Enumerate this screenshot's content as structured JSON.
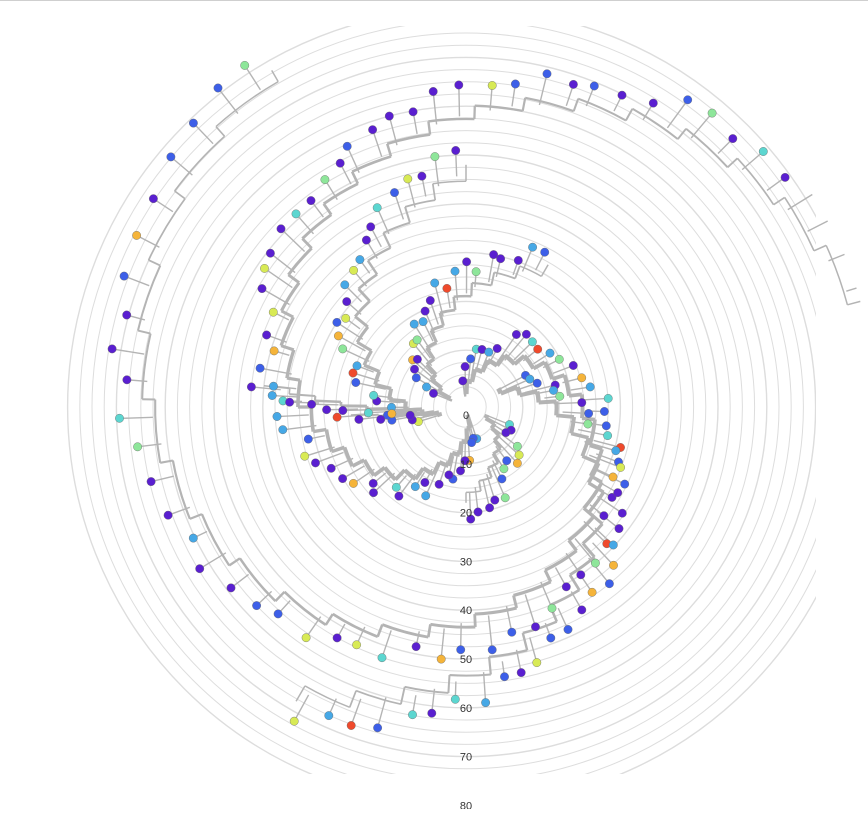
{
  "colors": {
    "ring": "#dddddd",
    "branch": "#b4b4b4",
    "node_stroke": "#666666",
    "palette": [
      "#5a1fd0",
      "#3d5fe8",
      "#46a8e6",
      "#5cd6d0",
      "#8ee69a",
      "#d8ea55",
      "#f5b43a",
      "#ef4a2c"
    ]
  },
  "axis": {
    "tick_labels": [
      "0",
      "10",
      "20",
      "30",
      "40",
      "50",
      "60",
      "70",
      "80"
    ],
    "tick_values": [
      0,
      10,
      20,
      30,
      40,
      50,
      60,
      70,
      80
    ],
    "ring_step": 2.5,
    "max": 82
  },
  "chart_data": {
    "type": "radial-tree",
    "arms": [
      {
        "start": 0,
        "end": 82,
        "a0": 70,
        "a1": 345,
        "tips": 60,
        "seed": 1
      },
      {
        "start": 4,
        "end": 48,
        "a0": 160,
        "a1": 270,
        "tips": 26,
        "seed": 2
      },
      {
        "start": 2,
        "end": 32,
        "a0": 200,
        "a1": 300,
        "tips": 22,
        "seed": 3
      },
      {
        "start": 1,
        "end": 78,
        "a0": 260,
        "a1": 600,
        "tips": 58,
        "seed": 4
      },
      {
        "start": 6,
        "end": 68,
        "a0": 330,
        "a1": 480,
        "tips": 34,
        "seed": 5
      },
      {
        "start": 3,
        "end": 18,
        "a0": 20,
        "a1": 90,
        "tips": 14,
        "seed": 6
      },
      {
        "start": 8,
        "end": 40,
        "a0": 175,
        "a1": 186,
        "tips": 8,
        "seed": 7
      },
      {
        "start": 5,
        "end": 22,
        "a0": 170,
        "a1": 176,
        "tips": 4,
        "seed": 8
      }
    ]
  }
}
